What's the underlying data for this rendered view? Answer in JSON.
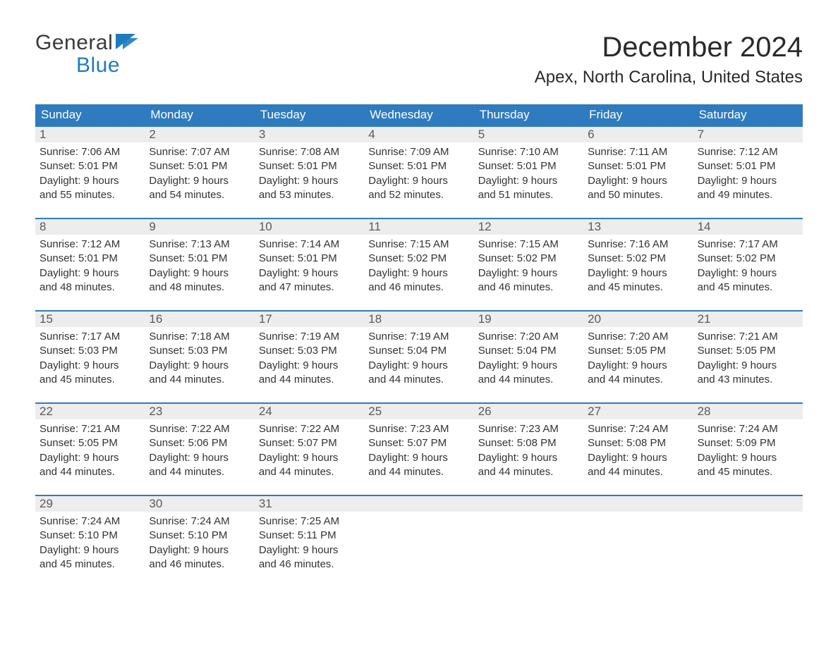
{
  "brand": {
    "word1": "General",
    "word2": "Blue"
  },
  "header": {
    "month_title": "December 2024",
    "location": "Apex, North Carolina, United States"
  },
  "colors": {
    "header_bg": "#2f7bbf",
    "date_row_bg": "#ededed",
    "rule": "#2f7bbf",
    "text": "#333333",
    "logo_blue": "#1f7bbf",
    "page_bg": "#ffffff"
  },
  "layout": {
    "columns": 7,
    "weeks": 5,
    "cell_font_size_pt": 11,
    "weekday_font_size_pt": 13,
    "title_font_size_pt": 30,
    "subtitle_font_size_pt": 18
  },
  "weekdays": [
    "Sunday",
    "Monday",
    "Tuesday",
    "Wednesday",
    "Thursday",
    "Friday",
    "Saturday"
  ],
  "days": [
    {
      "n": 1,
      "sunrise": "Sunrise: 7:06 AM",
      "sunset": "Sunset: 5:01 PM",
      "day1": "Daylight: 9 hours",
      "day2": "and 55 minutes."
    },
    {
      "n": 2,
      "sunrise": "Sunrise: 7:07 AM",
      "sunset": "Sunset: 5:01 PM",
      "day1": "Daylight: 9 hours",
      "day2": "and 54 minutes."
    },
    {
      "n": 3,
      "sunrise": "Sunrise: 7:08 AM",
      "sunset": "Sunset: 5:01 PM",
      "day1": "Daylight: 9 hours",
      "day2": "and 53 minutes."
    },
    {
      "n": 4,
      "sunrise": "Sunrise: 7:09 AM",
      "sunset": "Sunset: 5:01 PM",
      "day1": "Daylight: 9 hours",
      "day2": "and 52 minutes."
    },
    {
      "n": 5,
      "sunrise": "Sunrise: 7:10 AM",
      "sunset": "Sunset: 5:01 PM",
      "day1": "Daylight: 9 hours",
      "day2": "and 51 minutes."
    },
    {
      "n": 6,
      "sunrise": "Sunrise: 7:11 AM",
      "sunset": "Sunset: 5:01 PM",
      "day1": "Daylight: 9 hours",
      "day2": "and 50 minutes."
    },
    {
      "n": 7,
      "sunrise": "Sunrise: 7:12 AM",
      "sunset": "Sunset: 5:01 PM",
      "day1": "Daylight: 9 hours",
      "day2": "and 49 minutes."
    },
    {
      "n": 8,
      "sunrise": "Sunrise: 7:12 AM",
      "sunset": "Sunset: 5:01 PM",
      "day1": "Daylight: 9 hours",
      "day2": "and 48 minutes."
    },
    {
      "n": 9,
      "sunrise": "Sunrise: 7:13 AM",
      "sunset": "Sunset: 5:01 PM",
      "day1": "Daylight: 9 hours",
      "day2": "and 48 minutes."
    },
    {
      "n": 10,
      "sunrise": "Sunrise: 7:14 AM",
      "sunset": "Sunset: 5:01 PM",
      "day1": "Daylight: 9 hours",
      "day2": "and 47 minutes."
    },
    {
      "n": 11,
      "sunrise": "Sunrise: 7:15 AM",
      "sunset": "Sunset: 5:02 PM",
      "day1": "Daylight: 9 hours",
      "day2": "and 46 minutes."
    },
    {
      "n": 12,
      "sunrise": "Sunrise: 7:15 AM",
      "sunset": "Sunset: 5:02 PM",
      "day1": "Daylight: 9 hours",
      "day2": "and 46 minutes."
    },
    {
      "n": 13,
      "sunrise": "Sunrise: 7:16 AM",
      "sunset": "Sunset: 5:02 PM",
      "day1": "Daylight: 9 hours",
      "day2": "and 45 minutes."
    },
    {
      "n": 14,
      "sunrise": "Sunrise: 7:17 AM",
      "sunset": "Sunset: 5:02 PM",
      "day1": "Daylight: 9 hours",
      "day2": "and 45 minutes."
    },
    {
      "n": 15,
      "sunrise": "Sunrise: 7:17 AM",
      "sunset": "Sunset: 5:03 PM",
      "day1": "Daylight: 9 hours",
      "day2": "and 45 minutes."
    },
    {
      "n": 16,
      "sunrise": "Sunrise: 7:18 AM",
      "sunset": "Sunset: 5:03 PM",
      "day1": "Daylight: 9 hours",
      "day2": "and 44 minutes."
    },
    {
      "n": 17,
      "sunrise": "Sunrise: 7:19 AM",
      "sunset": "Sunset: 5:03 PM",
      "day1": "Daylight: 9 hours",
      "day2": "and 44 minutes."
    },
    {
      "n": 18,
      "sunrise": "Sunrise: 7:19 AM",
      "sunset": "Sunset: 5:04 PM",
      "day1": "Daylight: 9 hours",
      "day2": "and 44 minutes."
    },
    {
      "n": 19,
      "sunrise": "Sunrise: 7:20 AM",
      "sunset": "Sunset: 5:04 PM",
      "day1": "Daylight: 9 hours",
      "day2": "and 44 minutes."
    },
    {
      "n": 20,
      "sunrise": "Sunrise: 7:20 AM",
      "sunset": "Sunset: 5:05 PM",
      "day1": "Daylight: 9 hours",
      "day2": "and 44 minutes."
    },
    {
      "n": 21,
      "sunrise": "Sunrise: 7:21 AM",
      "sunset": "Sunset: 5:05 PM",
      "day1": "Daylight: 9 hours",
      "day2": "and 43 minutes."
    },
    {
      "n": 22,
      "sunrise": "Sunrise: 7:21 AM",
      "sunset": "Sunset: 5:05 PM",
      "day1": "Daylight: 9 hours",
      "day2": "and 44 minutes."
    },
    {
      "n": 23,
      "sunrise": "Sunrise: 7:22 AM",
      "sunset": "Sunset: 5:06 PM",
      "day1": "Daylight: 9 hours",
      "day2": "and 44 minutes."
    },
    {
      "n": 24,
      "sunrise": "Sunrise: 7:22 AM",
      "sunset": "Sunset: 5:07 PM",
      "day1": "Daylight: 9 hours",
      "day2": "and 44 minutes."
    },
    {
      "n": 25,
      "sunrise": "Sunrise: 7:23 AM",
      "sunset": "Sunset: 5:07 PM",
      "day1": "Daylight: 9 hours",
      "day2": "and 44 minutes."
    },
    {
      "n": 26,
      "sunrise": "Sunrise: 7:23 AM",
      "sunset": "Sunset: 5:08 PM",
      "day1": "Daylight: 9 hours",
      "day2": "and 44 minutes."
    },
    {
      "n": 27,
      "sunrise": "Sunrise: 7:24 AM",
      "sunset": "Sunset: 5:08 PM",
      "day1": "Daylight: 9 hours",
      "day2": "and 44 minutes."
    },
    {
      "n": 28,
      "sunrise": "Sunrise: 7:24 AM",
      "sunset": "Sunset: 5:09 PM",
      "day1": "Daylight: 9 hours",
      "day2": "and 45 minutes."
    },
    {
      "n": 29,
      "sunrise": "Sunrise: 7:24 AM",
      "sunset": "Sunset: 5:10 PM",
      "day1": "Daylight: 9 hours",
      "day2": "and 45 minutes."
    },
    {
      "n": 30,
      "sunrise": "Sunrise: 7:24 AM",
      "sunset": "Sunset: 5:10 PM",
      "day1": "Daylight: 9 hours",
      "day2": "and 46 minutes."
    },
    {
      "n": 31,
      "sunrise": "Sunrise: 7:25 AM",
      "sunset": "Sunset: 5:11 PM",
      "day1": "Daylight: 9 hours",
      "day2": "and 46 minutes."
    }
  ]
}
